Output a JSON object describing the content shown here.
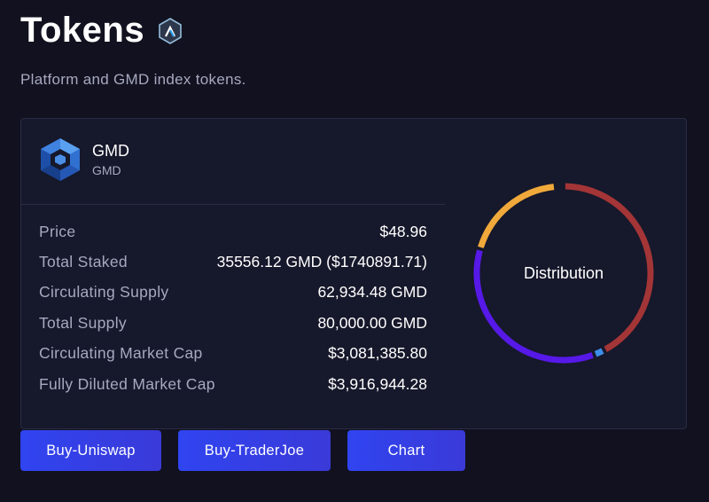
{
  "header": {
    "title": "Tokens",
    "network_icon": "arbitrum-icon",
    "subtitle": "Platform and GMD index tokens."
  },
  "token": {
    "name": "GMD",
    "symbol": "GMD",
    "logo_icon": "gmd-logo-icon",
    "stats": [
      {
        "label": "Price",
        "value": "$48.96"
      },
      {
        "label": "Total Staked",
        "value": "35556.12 GMD ($1740891.71)"
      },
      {
        "label": "Circulating Supply",
        "value": "62,934.48 GMD"
      },
      {
        "label": "Total Supply",
        "value": "80,000.00 GMD"
      },
      {
        "label": "Circulating Market Cap",
        "value": "$3,081,385.80"
      },
      {
        "label": "Fully Diluted Market Cap",
        "value": "$3,916,944.28"
      }
    ]
  },
  "distribution": {
    "label": "Distribution",
    "segments": [
      {
        "fraction": 0.423,
        "color": "#a33537"
      },
      {
        "fraction": 0.02,
        "color": "#3d8ee8"
      },
      {
        "fraction": 0.352,
        "color": "#5619e8"
      },
      {
        "fraction": 0.19,
        "color": "#f0a93a"
      }
    ]
  },
  "buttons": {
    "uniswap": "Buy-Uniswap",
    "traderjoe": "Buy-TraderJoe",
    "chart": "Chart"
  },
  "colors": {
    "background": "#11111f",
    "card": "#16182b",
    "accent": "#3044f0",
    "muted_text": "#a7a9c1"
  }
}
